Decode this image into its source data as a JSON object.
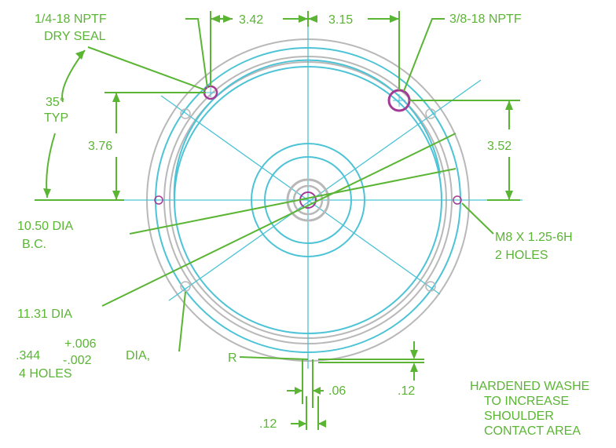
{
  "colors": {
    "dimension": "#5bb534",
    "geometry": "#4dc3d6",
    "outline": "#b8b8b8",
    "hole": "#a33b95"
  },
  "labels": {
    "npt_small": "1/4-18 NPTF",
    "dry_seal": "DRY SEAL",
    "angle": "35°",
    "typ": "TYP",
    "dim_left_offset": "3.42",
    "dim_right_offset": "3.15",
    "npt_large": "3/8-18 NPTF",
    "dim_left_height": "3.76",
    "dim_right_height": "3.52",
    "thread": "M8 X 1.25-6H",
    "thread_count": "2 HOLES",
    "bc_dia": "10.50 DIA",
    "bc": "B.C.",
    "outer_dia": "11.31 DIA",
    "tol_plus": "+.006",
    "tol_minus": "-.002",
    "hole_dia": ".344",
    "dia_suffix": "DIA,",
    "hole_count": "4 HOLES",
    "radius": "R",
    "dim_gap": ".06",
    "dim_step": ".12",
    "dim_bottom": ".12",
    "washer_1": "HARDENED WASHE",
    "washer_2": "TO INCREASE",
    "washer_3": "SHOULDER",
    "washer_4": "CONTACT AREA"
  }
}
